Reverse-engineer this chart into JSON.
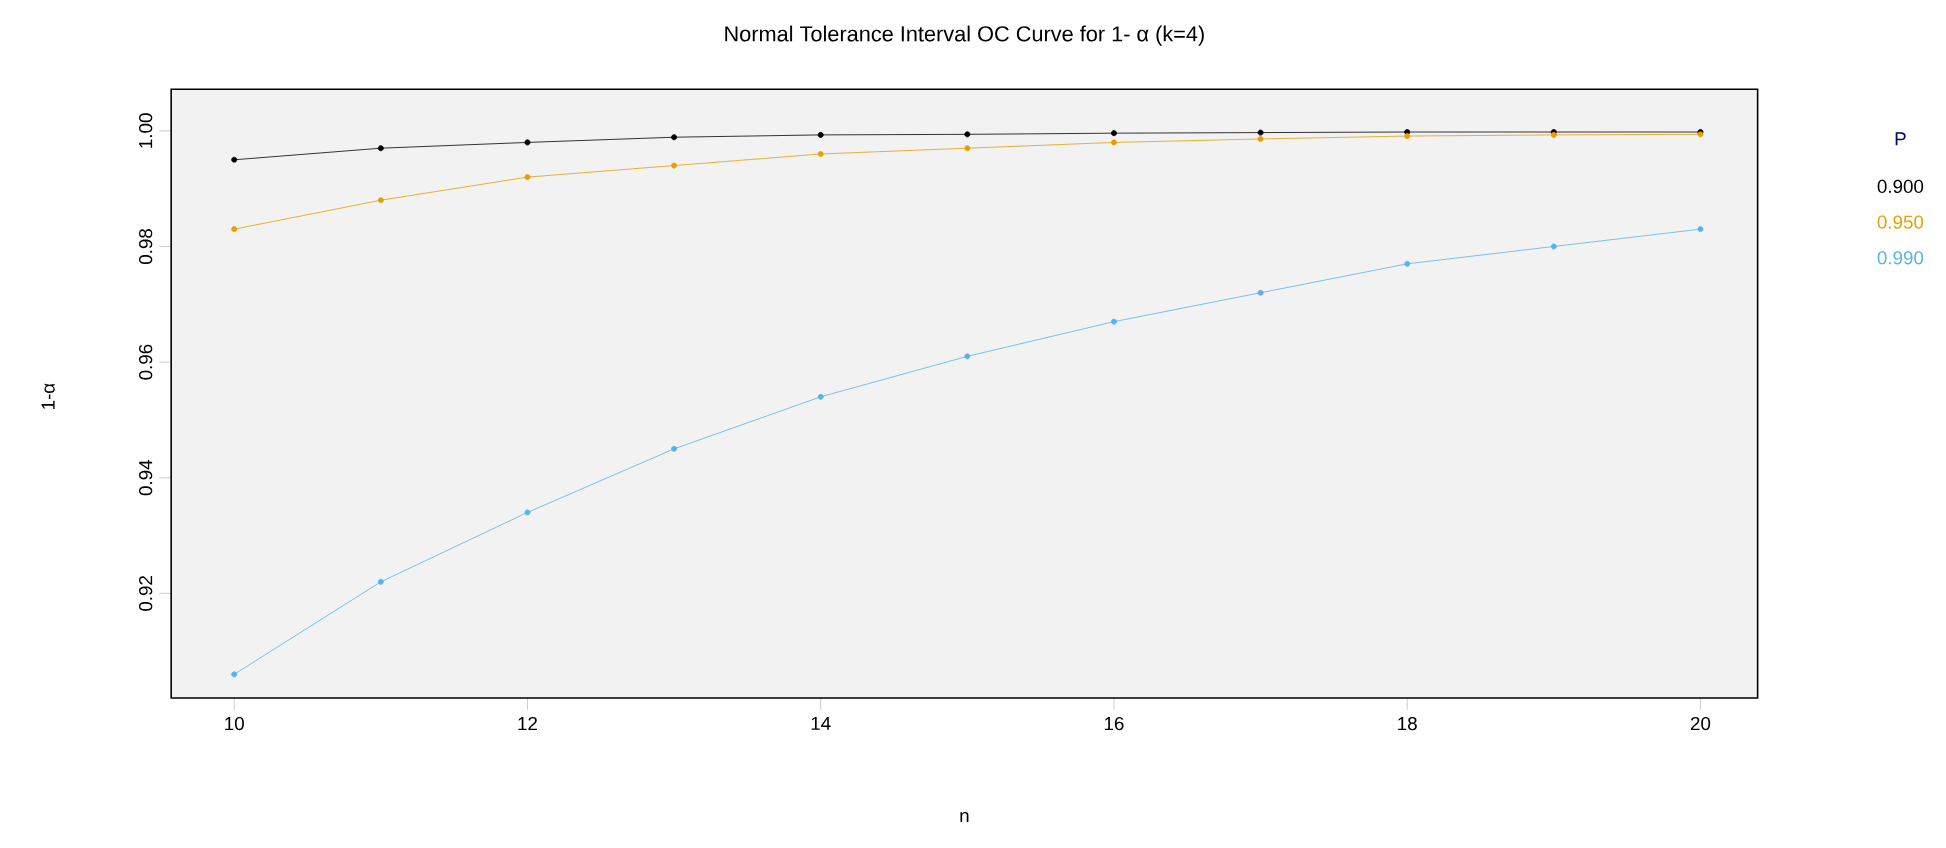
{
  "chart_data": {
    "type": "line",
    "title": "Normal Tolerance Interval OC Curve for 1- α (k=4)",
    "xlabel": "n",
    "ylabel": "1-α",
    "legend_title": "P",
    "legend": "right",
    "marker": "circle",
    "line_style": "solid",
    "grid": false,
    "x": [
      10,
      11,
      12,
      13,
      14,
      15,
      16,
      17,
      18,
      19,
      20
    ],
    "xlim": [
      9.57,
      20.39
    ],
    "xticks": [
      10,
      12,
      14,
      16,
      18,
      20
    ],
    "ylim": [
      0.9019,
      1.0072
    ],
    "yticks": [
      {
        "value": 0.92,
        "label": "0.92"
      },
      {
        "value": 0.94,
        "label": "0.94"
      },
      {
        "value": 0.96,
        "label": "0.96"
      },
      {
        "value": 0.98,
        "label": "0.98"
      },
      {
        "value": 1.0,
        "label": "1.00"
      }
    ],
    "series": [
      {
        "name": "0.900",
        "color": "#000000",
        "values": [
          0.995,
          0.997,
          0.998,
          0.9989,
          0.9993,
          0.9994,
          0.9996,
          0.9997,
          0.9998,
          0.9998,
          0.9998
        ]
      },
      {
        "name": "0.950",
        "color": "#e69f00",
        "values": [
          0.983,
          0.988,
          0.992,
          0.994,
          0.996,
          0.997,
          0.998,
          0.9986,
          0.9991,
          0.9993,
          0.9994
        ]
      },
      {
        "name": "0.990",
        "color": "#56b4e9",
        "values": [
          0.906,
          0.922,
          0.934,
          0.945,
          0.954,
          0.961,
          0.967,
          0.972,
          0.977,
          0.98,
          0.983
        ]
      }
    ]
  }
}
